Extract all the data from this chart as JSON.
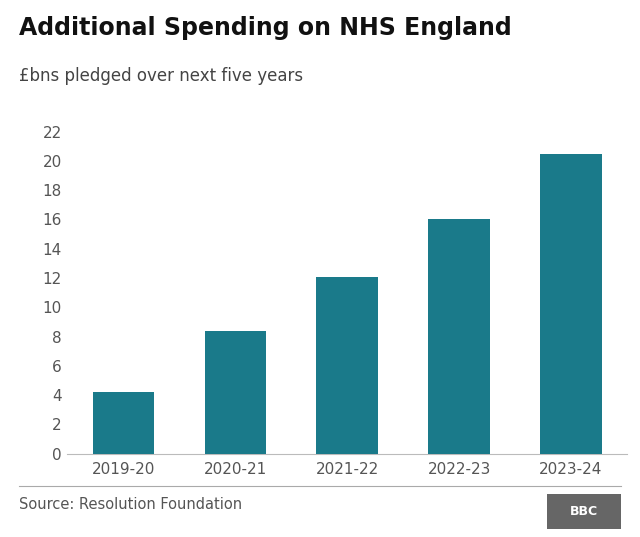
{
  "title": "Additional Spending on NHS England",
  "subtitle": "£bns pledged over next five years",
  "categories": [
    "2019-20",
    "2020-21",
    "2021-22",
    "2022-23",
    "2023-24"
  ],
  "values": [
    4.2,
    8.4,
    12.1,
    16.0,
    20.5
  ],
  "bar_color": "#1a7a8a",
  "ylim": [
    0,
    22
  ],
  "yticks": [
    0,
    2,
    4,
    6,
    8,
    10,
    12,
    14,
    16,
    18,
    20,
    22
  ],
  "source_text": "Source: Resolution Foundation",
  "bbc_text": "BBC",
  "background_color": "#ffffff",
  "title_fontsize": 17,
  "subtitle_fontsize": 12,
  "tick_fontsize": 11,
  "source_fontsize": 10.5,
  "bar_width": 0.55
}
